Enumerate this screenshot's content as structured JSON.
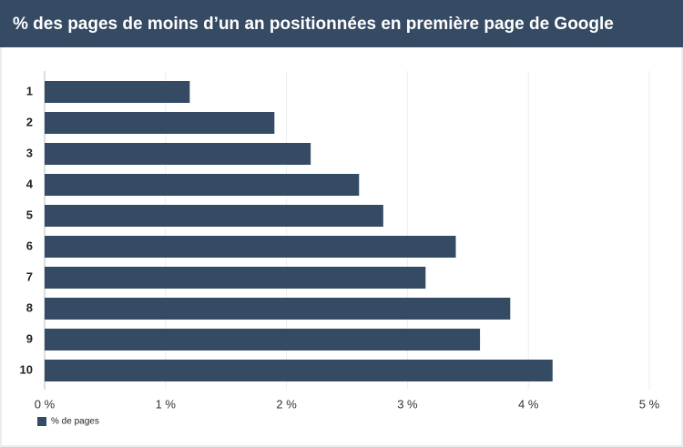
{
  "chart_data": {
    "type": "bar",
    "orientation": "horizontal",
    "title": "% des pages de moins d’un an positionnées en première page de Google",
    "categories": [
      "1",
      "2",
      "3",
      "4",
      "5",
      "6",
      "7",
      "8",
      "9",
      "10"
    ],
    "series": [
      {
        "name": "% de pages",
        "color": "#354a63",
        "values": [
          1.2,
          1.9,
          2.2,
          2.6,
          2.8,
          3.4,
          3.15,
          3.85,
          3.6,
          4.2
        ]
      }
    ],
    "xlim": [
      0,
      5
    ],
    "xticks": [
      {
        "value": 0,
        "label": "0 %"
      },
      {
        "value": 1,
        "label": "1 %"
      },
      {
        "value": 2,
        "label": "2 %"
      },
      {
        "value": 3,
        "label": "3 %"
      },
      {
        "value": 4,
        "label": "4 %"
      },
      {
        "value": 5,
        "label": "5 %"
      }
    ],
    "grid": true,
    "legend": "bottom-left"
  }
}
